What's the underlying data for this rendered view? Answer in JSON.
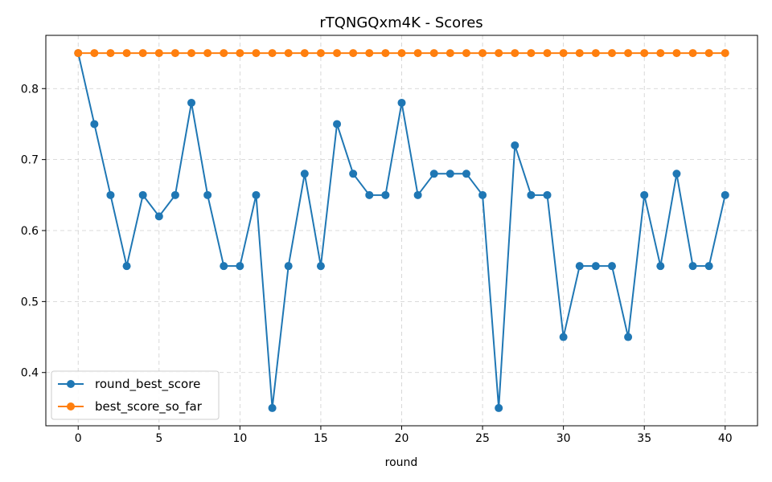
{
  "chart_data": {
    "type": "line",
    "title": "rTQNGQxm4K - Scores",
    "xlabel": "round",
    "ylabel": "",
    "xlim": [
      -2,
      42
    ],
    "ylim": [
      0.325,
      0.875
    ],
    "x_ticks": [
      0,
      5,
      10,
      15,
      20,
      25,
      30,
      35,
      40
    ],
    "x_tick_labels": [
      "0",
      "5",
      "10",
      "15",
      "20",
      "25",
      "30",
      "35",
      "40"
    ],
    "y_ticks": [
      0.4,
      0.5,
      0.6,
      0.7,
      0.8
    ],
    "y_tick_labels": [
      "0.4",
      "0.5",
      "0.6",
      "0.7",
      "0.8"
    ],
    "grid": true,
    "legend_position": "lower-left",
    "x": [
      0,
      1,
      2,
      3,
      4,
      5,
      6,
      7,
      8,
      9,
      10,
      11,
      12,
      13,
      14,
      15,
      16,
      17,
      18,
      19,
      20,
      21,
      22,
      23,
      24,
      25,
      26,
      27,
      28,
      29,
      30,
      31,
      32,
      33,
      34,
      35,
      36,
      37,
      38,
      39,
      40
    ],
    "series": [
      {
        "name": "round_best_score",
        "color": "#1f77b4",
        "values": [
          0.85,
          0.75,
          0.65,
          0.55,
          0.65,
          0.62,
          0.65,
          0.78,
          0.65,
          0.55,
          0.55,
          0.65,
          0.35,
          0.55,
          0.68,
          0.55,
          0.75,
          0.68,
          0.65,
          0.65,
          0.78,
          0.65,
          0.68,
          0.68,
          0.68,
          0.65,
          0.35,
          0.72,
          0.65,
          0.65,
          0.45,
          0.55,
          0.55,
          0.55,
          0.45,
          0.65,
          0.55,
          0.68,
          0.55,
          0.55,
          0.65
        ]
      },
      {
        "name": "best_score_so_far",
        "color": "#ff7f0e",
        "values": [
          0.85,
          0.85,
          0.85,
          0.85,
          0.85,
          0.85,
          0.85,
          0.85,
          0.85,
          0.85,
          0.85,
          0.85,
          0.85,
          0.85,
          0.85,
          0.85,
          0.85,
          0.85,
          0.85,
          0.85,
          0.85,
          0.85,
          0.85,
          0.85,
          0.85,
          0.85,
          0.85,
          0.85,
          0.85,
          0.85,
          0.85,
          0.85,
          0.85,
          0.85,
          0.85,
          0.85,
          0.85,
          0.85,
          0.85,
          0.85,
          0.85
        ]
      }
    ]
  }
}
